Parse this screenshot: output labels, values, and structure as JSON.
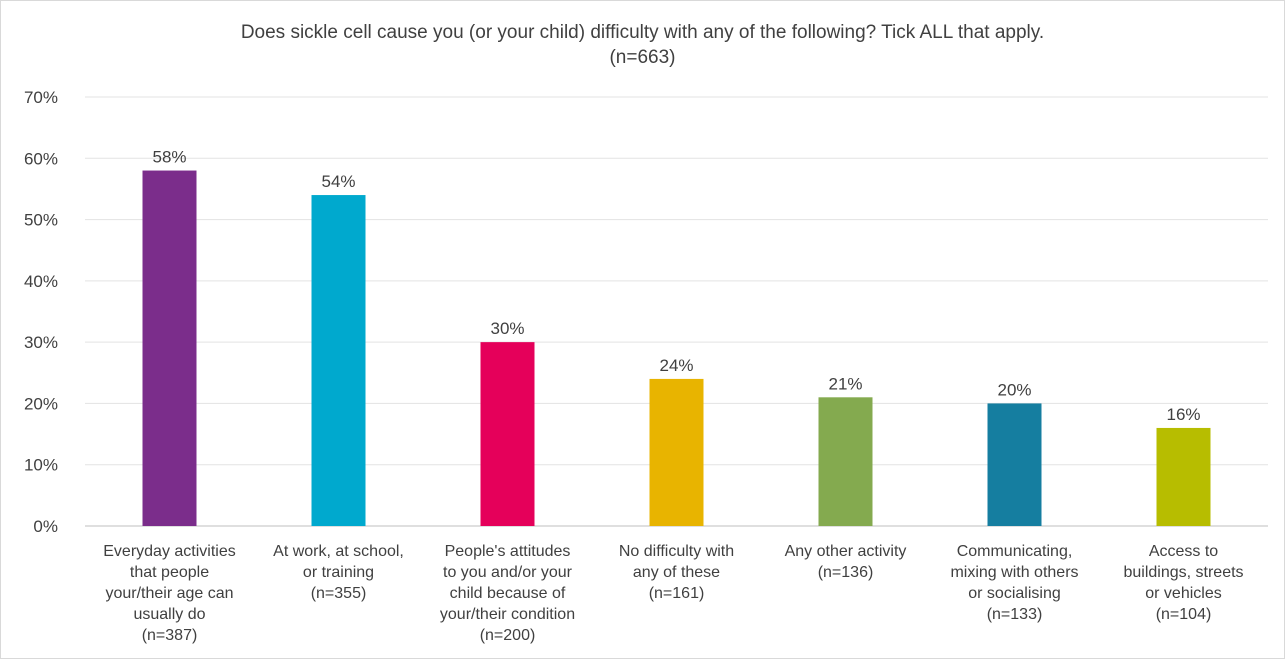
{
  "chart_data": {
    "type": "bar",
    "title": "Does sickle cell cause you (or your child) difficulty with any of the following? Tick ALL that apply.",
    "subtitle": "(n=663)",
    "xlabel": "",
    "ylabel": "",
    "ylim": [
      0,
      70
    ],
    "ytick_values": [
      0,
      10,
      20,
      30,
      40,
      50,
      60,
      70
    ],
    "ytick_labels": [
      "0%",
      "10%",
      "20%",
      "30%",
      "40%",
      "50%",
      "60%",
      "70%"
    ],
    "grid": true,
    "legend": "none",
    "categories": [
      [
        "Everyday activities",
        "that people",
        "your/their age can",
        "usually do",
        "(n=387)"
      ],
      [
        "At work, at school,",
        "or training",
        "(n=355)"
      ],
      [
        "People's attitudes",
        "to you and/or your",
        "child because of",
        "your/their condition",
        "(n=200)"
      ],
      [
        "No difficulty with",
        "any of these",
        "(n=161)"
      ],
      [
        "Any other activity",
        "(n=136)"
      ],
      [
        "Communicating,",
        "mixing with others",
        "or socialising",
        "(n=133)"
      ],
      [
        "Access to",
        "buildings, streets",
        "or vehicles",
        "(n=104)"
      ]
    ],
    "values": [
      58,
      54,
      30,
      24,
      21,
      20,
      16
    ],
    "value_labels": [
      "58%",
      "54%",
      "30%",
      "24%",
      "21%",
      "20%",
      "16%"
    ],
    "colors": [
      "#7b2d8b",
      "#00a9ce",
      "#e5005a",
      "#e8b400",
      "#84aa4f",
      "#157ea0",
      "#b7bd00"
    ]
  }
}
